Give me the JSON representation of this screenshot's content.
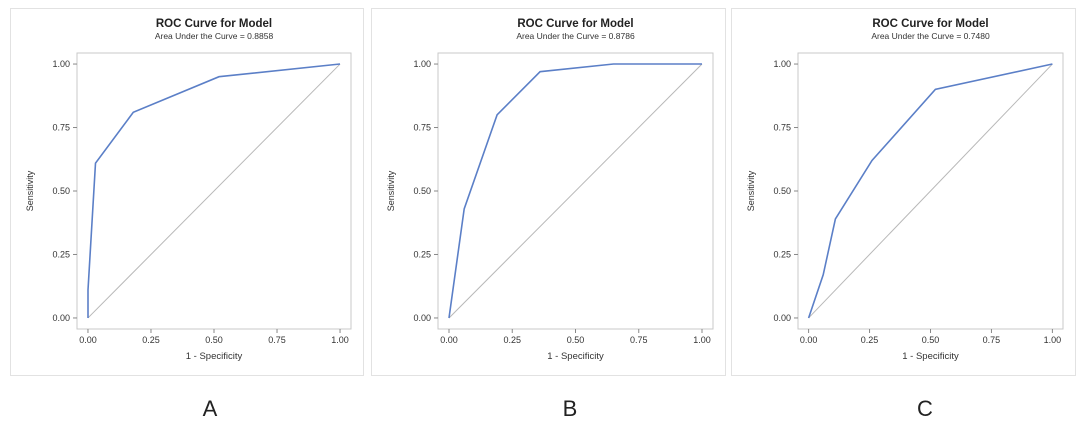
{
  "chart_data": [
    {
      "type": "line",
      "title": "ROC Curve for Model",
      "subtitle": "Area Under the Curve = 0.8858",
      "xlabel": "1 - Specificity",
      "ylabel": "Sensitivity",
      "xlim": [
        0,
        1
      ],
      "ylim": [
        0,
        1
      ],
      "xticks": [
        "0.00",
        "0.25",
        "0.50",
        "0.75",
        "1.00"
      ],
      "yticks": [
        "0.00",
        "0.25",
        "0.50",
        "0.75",
        "1.00"
      ],
      "grid": false,
      "panel_label": "A",
      "series": [
        {
          "x": [
            0,
            0.0,
            0.03,
            0.18,
            0.52,
            1.0
          ],
          "y": [
            0,
            0.11,
            0.61,
            0.81,
            0.95,
            1.0
          ],
          "color": "#5b7fc7"
        }
      ],
      "reference_line": {
        "x": [
          0,
          1
        ],
        "y": [
          0,
          1
        ],
        "color": "#b8b8b8"
      }
    },
    {
      "type": "line",
      "title": "ROC Curve for Model",
      "subtitle": "Area Under the Curve = 0.8786",
      "xlabel": "1 - Specificity",
      "ylabel": "Sensitivity",
      "xlim": [
        0,
        1
      ],
      "ylim": [
        0,
        1
      ],
      "xticks": [
        "0.00",
        "0.25",
        "0.50",
        "0.75",
        "1.00"
      ],
      "yticks": [
        "0.00",
        "0.25",
        "0.50",
        "0.75",
        "1.00"
      ],
      "grid": false,
      "panel_label": "B",
      "series": [
        {
          "x": [
            0,
            0.06,
            0.19,
            0.36,
            0.65,
            1.0
          ],
          "y": [
            0,
            0.43,
            0.8,
            0.97,
            1.0,
            1.0
          ],
          "color": "#5b7fc7"
        }
      ],
      "reference_line": {
        "x": [
          0,
          1
        ],
        "y": [
          0,
          1
        ],
        "color": "#b8b8b8"
      }
    },
    {
      "type": "line",
      "title": "ROC Curve for Model",
      "subtitle": "Area Under the Curve = 0.7480",
      "xlabel": "1 - Specificity",
      "ylabel": "Sensitivity",
      "xlim": [
        0,
        1
      ],
      "ylim": [
        0,
        1
      ],
      "xticks": [
        "0.00",
        "0.25",
        "0.50",
        "0.75",
        "1.00"
      ],
      "yticks": [
        "0.00",
        "0.25",
        "0.50",
        "0.75",
        "1.00"
      ],
      "grid": false,
      "panel_label": "C",
      "series": [
        {
          "x": [
            0,
            0.06,
            0.11,
            0.26,
            0.52,
            1.0
          ],
          "y": [
            0,
            0.17,
            0.39,
            0.62,
            0.9,
            1.0
          ],
          "color": "#5b7fc7"
        }
      ],
      "reference_line": {
        "x": [
          0,
          1
        ],
        "y": [
          0,
          1
        ],
        "color": "#b8b8b8"
      }
    }
  ]
}
